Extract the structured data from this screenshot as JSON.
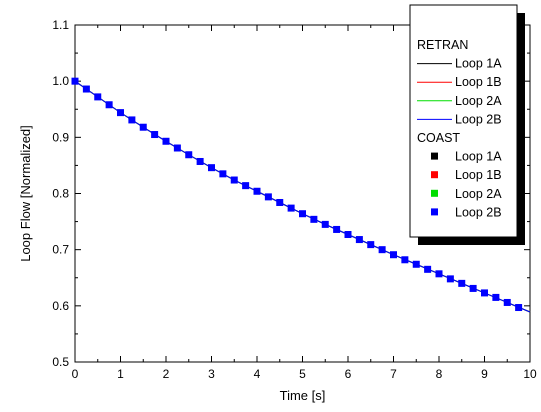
{
  "chart_data": {
    "type": "line",
    "title": "",
    "xlabel": "Time [s]",
    "ylabel": "Loop Flow [Normalized]",
    "xlim": [
      0,
      10
    ],
    "ylim": [
      0.5,
      1.1
    ],
    "xticks": [
      0,
      1,
      2,
      3,
      4,
      5,
      6,
      7,
      8,
      9,
      10
    ],
    "yticks": [
      0.5,
      0.6,
      0.7,
      0.8,
      0.9,
      1.0,
      1.1
    ],
    "xtick_labels": [
      "0",
      "1",
      "2",
      "3",
      "4",
      "5",
      "6",
      "7",
      "8",
      "9",
      "10"
    ],
    "ytick_labels": [
      "0.5",
      "0.6",
      "0.7",
      "0.8",
      "0.9",
      "1.0",
      "1.1"
    ],
    "grid": false,
    "legend_position": "top-right",
    "legend_groups": [
      {
        "title": "RETRAN",
        "style": "line",
        "entries": [
          {
            "name": "Loop 1A",
            "color": "#000000"
          },
          {
            "name": "Loop 1B",
            "color": "#ff0000"
          },
          {
            "name": "Loop 2A",
            "color": "#00dd00"
          },
          {
            "name": "Loop 2B",
            "color": "#0000ff"
          }
        ]
      },
      {
        "title": "COAST",
        "style": "square",
        "entries": [
          {
            "name": "Loop 1A",
            "color": "#000000"
          },
          {
            "name": "Loop 1B",
            "color": "#ff0000"
          },
          {
            "name": "Loop 2A",
            "color": "#00dd00"
          },
          {
            "name": "Loop 2B",
            "color": "#0000ff"
          }
        ]
      }
    ],
    "retran_curve": {
      "x": [
        0,
        0.5,
        1,
        1.5,
        2,
        2.5,
        3,
        3.5,
        4,
        4.5,
        5,
        5.5,
        6,
        6.5,
        7,
        7.5,
        8,
        8.5,
        9,
        9.5,
        10
      ],
      "y": [
        1.0,
        0.972,
        0.944,
        0.918,
        0.893,
        0.869,
        0.846,
        0.824,
        0.804,
        0.784,
        0.764,
        0.745,
        0.727,
        0.709,
        0.691,
        0.674,
        0.657,
        0.64,
        0.623,
        0.606,
        0.589
      ]
    },
    "coast_points": {
      "x": [
        0,
        0.25,
        0.5,
        0.75,
        1,
        1.25,
        1.5,
        1.75,
        2,
        2.25,
        2.5,
        2.75,
        3,
        3.25,
        3.5,
        3.75,
        4,
        4.25,
        4.5,
        4.75,
        5,
        5.25,
        5.5,
        5.75,
        6,
        6.25,
        6.5,
        6.75,
        7,
        7.25,
        7.5,
        7.75,
        8,
        8.25,
        8.5,
        8.75,
        9,
        9.25,
        9.5,
        9.75
      ],
      "y": [
        1.0,
        0.986,
        0.972,
        0.958,
        0.944,
        0.931,
        0.918,
        0.905,
        0.893,
        0.881,
        0.869,
        0.857,
        0.846,
        0.835,
        0.824,
        0.814,
        0.804,
        0.794,
        0.784,
        0.774,
        0.764,
        0.754,
        0.745,
        0.736,
        0.727,
        0.718,
        0.709,
        0.7,
        0.691,
        0.682,
        0.674,
        0.665,
        0.657,
        0.648,
        0.64,
        0.631,
        0.623,
        0.615,
        0.606,
        0.597
      ]
    }
  }
}
